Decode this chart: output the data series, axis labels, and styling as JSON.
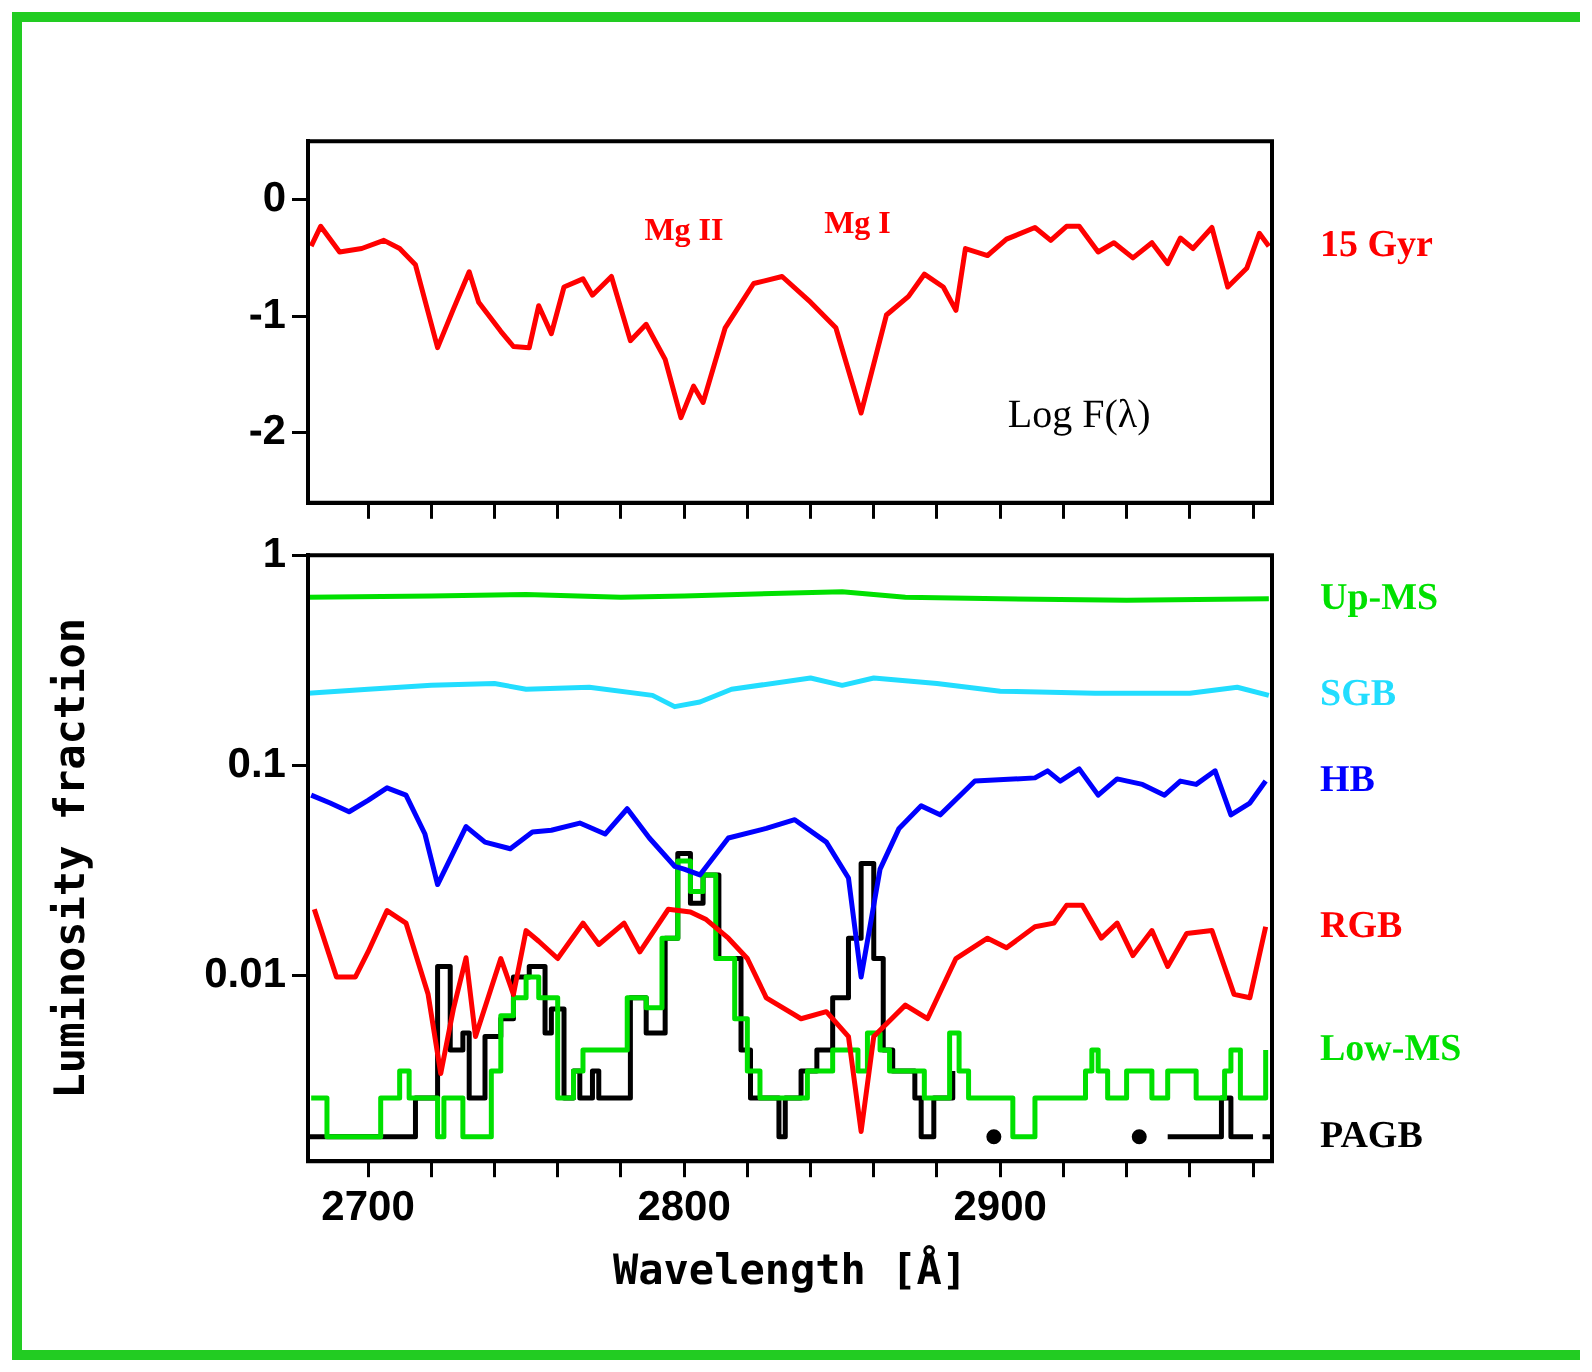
{
  "chart_data": [
    {
      "type": "line",
      "xlim": [
        2681,
        2986
      ],
      "ylim": [
        -2.6,
        0.5
      ],
      "xticks": [
        {
          "value": 2700,
          "label": null
        },
        {
          "value": 2720,
          "label": null
        },
        {
          "value": 2740,
          "label": null
        },
        {
          "value": 2760,
          "label": null
        },
        {
          "value": 2780,
          "label": null
        },
        {
          "value": 2800,
          "label": null
        },
        {
          "value": 2820,
          "label": null
        },
        {
          "value": 2840,
          "label": null
        },
        {
          "value": 2860,
          "label": null
        },
        {
          "value": 2880,
          "label": null
        },
        {
          "value": 2900,
          "label": null
        },
        {
          "value": 2920,
          "label": null
        },
        {
          "value": 2940,
          "label": null
        },
        {
          "value": 2960,
          "label": null
        },
        {
          "value": 2980,
          "label": null
        }
      ],
      "yticks": [
        -2,
        -1,
        0
      ],
      "tick_labels": "y",
      "grid": false,
      "legend": false,
      "annotations": [
        "Mg II",
        "Mg I",
        "Log F(λ)"
      ],
      "series": [
        {
          "name": "15 Gyr",
          "color": "#ff0000",
          "x": [
            2682,
            2685,
            2691,
            2698,
            2705,
            2710,
            2715,
            2722,
            2727,
            2732,
            2735,
            2742,
            2746,
            2751,
            2754,
            2758,
            2762,
            2768,
            2771,
            2777,
            2783,
            2788,
            2794,
            2799,
            2803,
            2806,
            2813,
            2822,
            2831,
            2840,
            2848,
            2856,
            2864,
            2871,
            2876,
            2882,
            2886,
            2889,
            2896,
            2902,
            2911,
            2916,
            2921,
            2925,
            2931,
            2936,
            2942,
            2948,
            2953,
            2957,
            2961,
            2967,
            2972,
            2978,
            2982,
            2985
          ],
          "values": [
            -0.4,
            -0.23,
            -0.45,
            -0.42,
            -0.35,
            -0.42,
            -0.56,
            -1.27,
            -0.94,
            -0.62,
            -0.88,
            -1.13,
            -1.26,
            -1.27,
            -0.91,
            -1.15,
            -0.75,
            -0.68,
            -0.82,
            -0.66,
            -1.21,
            -1.07,
            -1.37,
            -1.87,
            -1.6,
            -1.74,
            -1.1,
            -0.72,
            -0.66,
            -0.88,
            -1.1,
            -1.83,
            -0.99,
            -0.83,
            -0.64,
            -0.75,
            -0.95,
            -0.42,
            -0.48,
            -0.34,
            -0.24,
            -0.35,
            -0.23,
            -0.23,
            -0.45,
            -0.37,
            -0.5,
            -0.37,
            -0.55,
            -0.33,
            -0.42,
            -0.24,
            -0.75,
            -0.59,
            -0.29,
            -0.4
          ]
        }
      ]
    },
    {
      "type": "line",
      "xlim": [
        2681,
        2986
      ],
      "ylim": [
        0.0013,
        1
      ],
      "log": "y",
      "xticks": [
        2700,
        {
          "value": 2720,
          "label": null
        },
        {
          "value": 2740,
          "label": null
        },
        {
          "value": 2760,
          "label": null
        },
        {
          "value": 2780,
          "label": null
        },
        2800,
        {
          "value": 2820,
          "label": null
        },
        {
          "value": 2840,
          "label": null
        },
        {
          "value": 2860,
          "label": null
        },
        {
          "value": 2880,
          "label": null
        },
        2900,
        {
          "value": 2920,
          "label": null
        },
        {
          "value": 2940,
          "label": null
        },
        {
          "value": 2960,
          "label": null
        },
        {
          "value": 2980,
          "label": null
        }
      ],
      "yticks": [
        0.01,
        0.1,
        1
      ],
      "grid": false,
      "legend": false,
      "xlabel": "Wavelength [Å]",
      "ylabel": "Luminosity fraction",
      "series": [
        {
          "name": "Up-MS",
          "color": "#00e000",
          "x": [
            2681,
            2720,
            2750,
            2780,
            2800,
            2850,
            2870,
            2900,
            2940,
            2985
          ],
          "values": [
            0.63,
            0.64,
            0.65,
            0.63,
            0.64,
            0.67,
            0.63,
            0.62,
            0.61,
            0.62
          ]
        },
        {
          "name": "SGB",
          "color": "#22ddff",
          "x": [
            2681,
            2700,
            2720,
            2740,
            2750,
            2770,
            2790,
            2797,
            2805,
            2815,
            2840,
            2850,
            2860,
            2880,
            2900,
            2930,
            2960,
            2975,
            2985
          ],
          "values": [
            0.22,
            0.23,
            0.24,
            0.245,
            0.23,
            0.235,
            0.215,
            0.19,
            0.2,
            0.23,
            0.26,
            0.24,
            0.26,
            0.245,
            0.225,
            0.22,
            0.22,
            0.235,
            0.215
          ]
        },
        {
          "name": "HB",
          "color": "#0000ff",
          "x": [
            2682,
            2688,
            2694,
            2700,
            2706,
            2712,
            2718,
            2722,
            2731,
            2737,
            2745,
            2752,
            2758,
            2767,
            2775,
            2782,
            2789,
            2797,
            2800,
            2805,
            2814,
            2826,
            2835,
            2845,
            2852,
            2856,
            2862,
            2868,
            2875,
            2881,
            2892,
            2911,
            2915,
            2919,
            2925,
            2931,
            2937,
            2945,
            2952,
            2957,
            2962,
            2968,
            2973,
            2979,
            2984
          ],
          "values": [
            0.072,
            0.066,
            0.06,
            0.068,
            0.078,
            0.072,
            0.047,
            0.027,
            0.051,
            0.043,
            0.04,
            0.048,
            0.049,
            0.053,
            0.047,
            0.062,
            0.045,
            0.033,
            0.032,
            0.03,
            0.045,
            0.05,
            0.055,
            0.043,
            0.029,
            0.0098,
            0.032,
            0.05,
            0.064,
            0.058,
            0.084,
            0.087,
            0.094,
            0.084,
            0.096,
            0.072,
            0.086,
            0.081,
            0.072,
            0.084,
            0.081,
            0.094,
            0.058,
            0.066,
            0.084
          ]
        },
        {
          "name": "RGB",
          "color": "#ff0000",
          "x": [
            2683,
            2690,
            2696,
            2700,
            2706,
            2712,
            2719,
            2723,
            2727,
            2731,
            2734,
            2742,
            2746,
            2750,
            2754,
            2760,
            2768,
            2773,
            2781,
            2786,
            2795,
            2802,
            2807,
            2814,
            2820,
            2826,
            2837,
            2845,
            2852,
            2856,
            2860,
            2870,
            2877,
            2886,
            2896,
            2902,
            2911,
            2917,
            2921,
            2926,
            2932,
            2937,
            2942,
            2948,
            2953,
            2959,
            2967,
            2974,
            2979,
            2984
          ],
          "values": [
            0.0206,
            0.0098,
            0.0098,
            0.0129,
            0.0203,
            0.0177,
            0.0081,
            0.0034,
            0.0069,
            0.0121,
            0.0051,
            0.012,
            0.0081,
            0.0163,
            0.0145,
            0.012,
            0.0177,
            0.014,
            0.0177,
            0.0129,
            0.0206,
            0.02,
            0.0184,
            0.015,
            0.012,
            0.0078,
            0.0062,
            0.0067,
            0.0051,
            0.0018,
            0.0051,
            0.0072,
            0.0062,
            0.012,
            0.015,
            0.0135,
            0.017,
            0.0177,
            0.0215,
            0.0215,
            0.015,
            0.0177,
            0.0124,
            0.0163,
            0.011,
            0.0158,
            0.0163,
            0.0081,
            0.0078,
            0.017
          ]
        },
        {
          "name": "Low-MS",
          "color": "#00e000",
          "type": "step",
          "x": [
            2682,
            2687,
            2698,
            2704,
            2710,
            2713,
            2722,
            2724,
            2730,
            2732,
            2739,
            2742,
            2746,
            2750,
            2754,
            2760,
            2765,
            2768,
            2772,
            2778,
            2782,
            2788,
            2793,
            2798,
            2802,
            2806,
            2810,
            2816,
            2820,
            2824,
            2839,
            2847,
            2852,
            2855,
            2858,
            2862,
            2865,
            2873,
            2876,
            2884,
            2887,
            2890,
            2904,
            2911,
            2927,
            2929,
            2931,
            2934,
            2940,
            2948,
            2953,
            2959,
            2962,
            2971,
            2973,
            2976,
            2984
          ],
          "values": [
            0.0026,
            0.0017,
            0.0017,
            0.0026,
            0.0035,
            0.0026,
            0.0017,
            0.0026,
            0.0017,
            0.0017,
            0.0035,
            0.0064,
            0.0078,
            0.0098,
            0.0078,
            0.0026,
            0.0035,
            0.0044,
            0.0044,
            0.0044,
            0.0078,
            0.007,
            0.015,
            0.035,
            0.025,
            0.03,
            0.012,
            0.0062,
            0.0035,
            0.0026,
            0.0035,
            0.0044,
            0.0044,
            0.0035,
            0.0053,
            0.0044,
            0.0035,
            0.0035,
            0.0026,
            0.0053,
            0.0035,
            0.0026,
            0.0017,
            0.0026,
            0.0035,
            0.0044,
            0.0035,
            0.0026,
            0.0035,
            0.0026,
            0.0035,
            0.0035,
            0.0026,
            0.0035,
            0.0044,
            0.0026,
            0.0044
          ]
        },
        {
          "name": "PAGB",
          "color": "#000000",
          "type": "step",
          "x": [
            2681,
            2706,
            2715,
            2722,
            2726,
            2730,
            2732,
            2737,
            2742,
            2746,
            2751,
            2756,
            2758,
            2762,
            2765,
            2767,
            2771,
            2773,
            2779,
            2783,
            2788,
            2794,
            2798,
            2802,
            2806,
            2811,
            2818,
            2821,
            2829,
            2830,
            2832,
            2837,
            2842,
            2847,
            2852,
            2856,
            2860,
            2863,
            2866,
            2873,
            2875,
            2879,
            2885,
            2889,
            2897,
            2898,
            2899,
            2943,
            2944,
            2952,
            2953,
            2970,
            2973,
            2980,
            2981,
            2983,
            2986
          ],
          "values": [
            0.0017,
            0.0017,
            0.0026,
            0.011,
            0.0044,
            0.0053,
            0.0026,
            0.0051,
            0.0062,
            0.0098,
            0.011,
            0.0053,
            0.0069,
            0.0026,
            0.0035,
            0.0026,
            0.0035,
            0.0026,
            0.0026,
            0.0078,
            0.0053,
            0.015,
            0.038,
            0.022,
            0.03,
            0.012,
            0.0044,
            0.0026,
            0.0026,
            0.0017,
            0.0026,
            0.0035,
            0.0044,
            0.0078,
            0.015,
            0.034,
            0.012,
            0.0044,
            0.0035,
            0.0026,
            0.0017,
            0.0026,
            0.0035,
            null,
            null,
            0.0017,
            null,
            null,
            0.0017,
            null,
            0.0017,
            0.0026,
            0.0017,
            0.0017,
            null,
            0.0017,
            0.0017
          ]
        }
      ]
    }
  ]
}
